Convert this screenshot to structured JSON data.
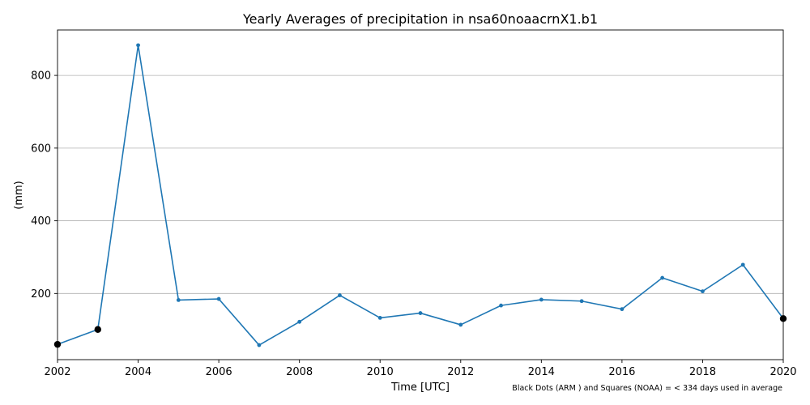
{
  "chart_data": {
    "type": "line",
    "title": "Yearly Averages of precipitation in nsa60noaacrnX1.b1",
    "xlabel": "Time [UTC]",
    "ylabel": "(mm)",
    "xlim": [
      2002,
      2020
    ],
    "ylim": [
      18,
      925
    ],
    "x_ticks": [
      2002,
      2004,
      2006,
      2008,
      2010,
      2012,
      2014,
      2016,
      2018,
      2020
    ],
    "y_ticks": [
      200,
      400,
      600,
      800
    ],
    "grid": "horizontal",
    "note": "Black Dots (ARM ) and Squares (NOAA) = < 334 days used in average",
    "series": [
      {
        "color": "#1f77b4",
        "x": [
          2002,
          2003,
          2004,
          2005,
          2006,
          2007,
          2008,
          2009,
          2010,
          2011,
          2012,
          2013,
          2014,
          2015,
          2016,
          2017,
          2018,
          2019,
          2020
        ],
        "y": [
          60,
          101,
          883,
          182,
          185,
          58,
          122,
          195,
          133,
          146,
          114,
          167,
          183,
          179,
          157,
          243,
          206,
          279,
          131
        ]
      }
    ],
    "flagged_points": {
      "color": "#000000",
      "x": [
        2002,
        2003,
        2020
      ],
      "y": [
        60,
        101,
        131
      ]
    }
  }
}
